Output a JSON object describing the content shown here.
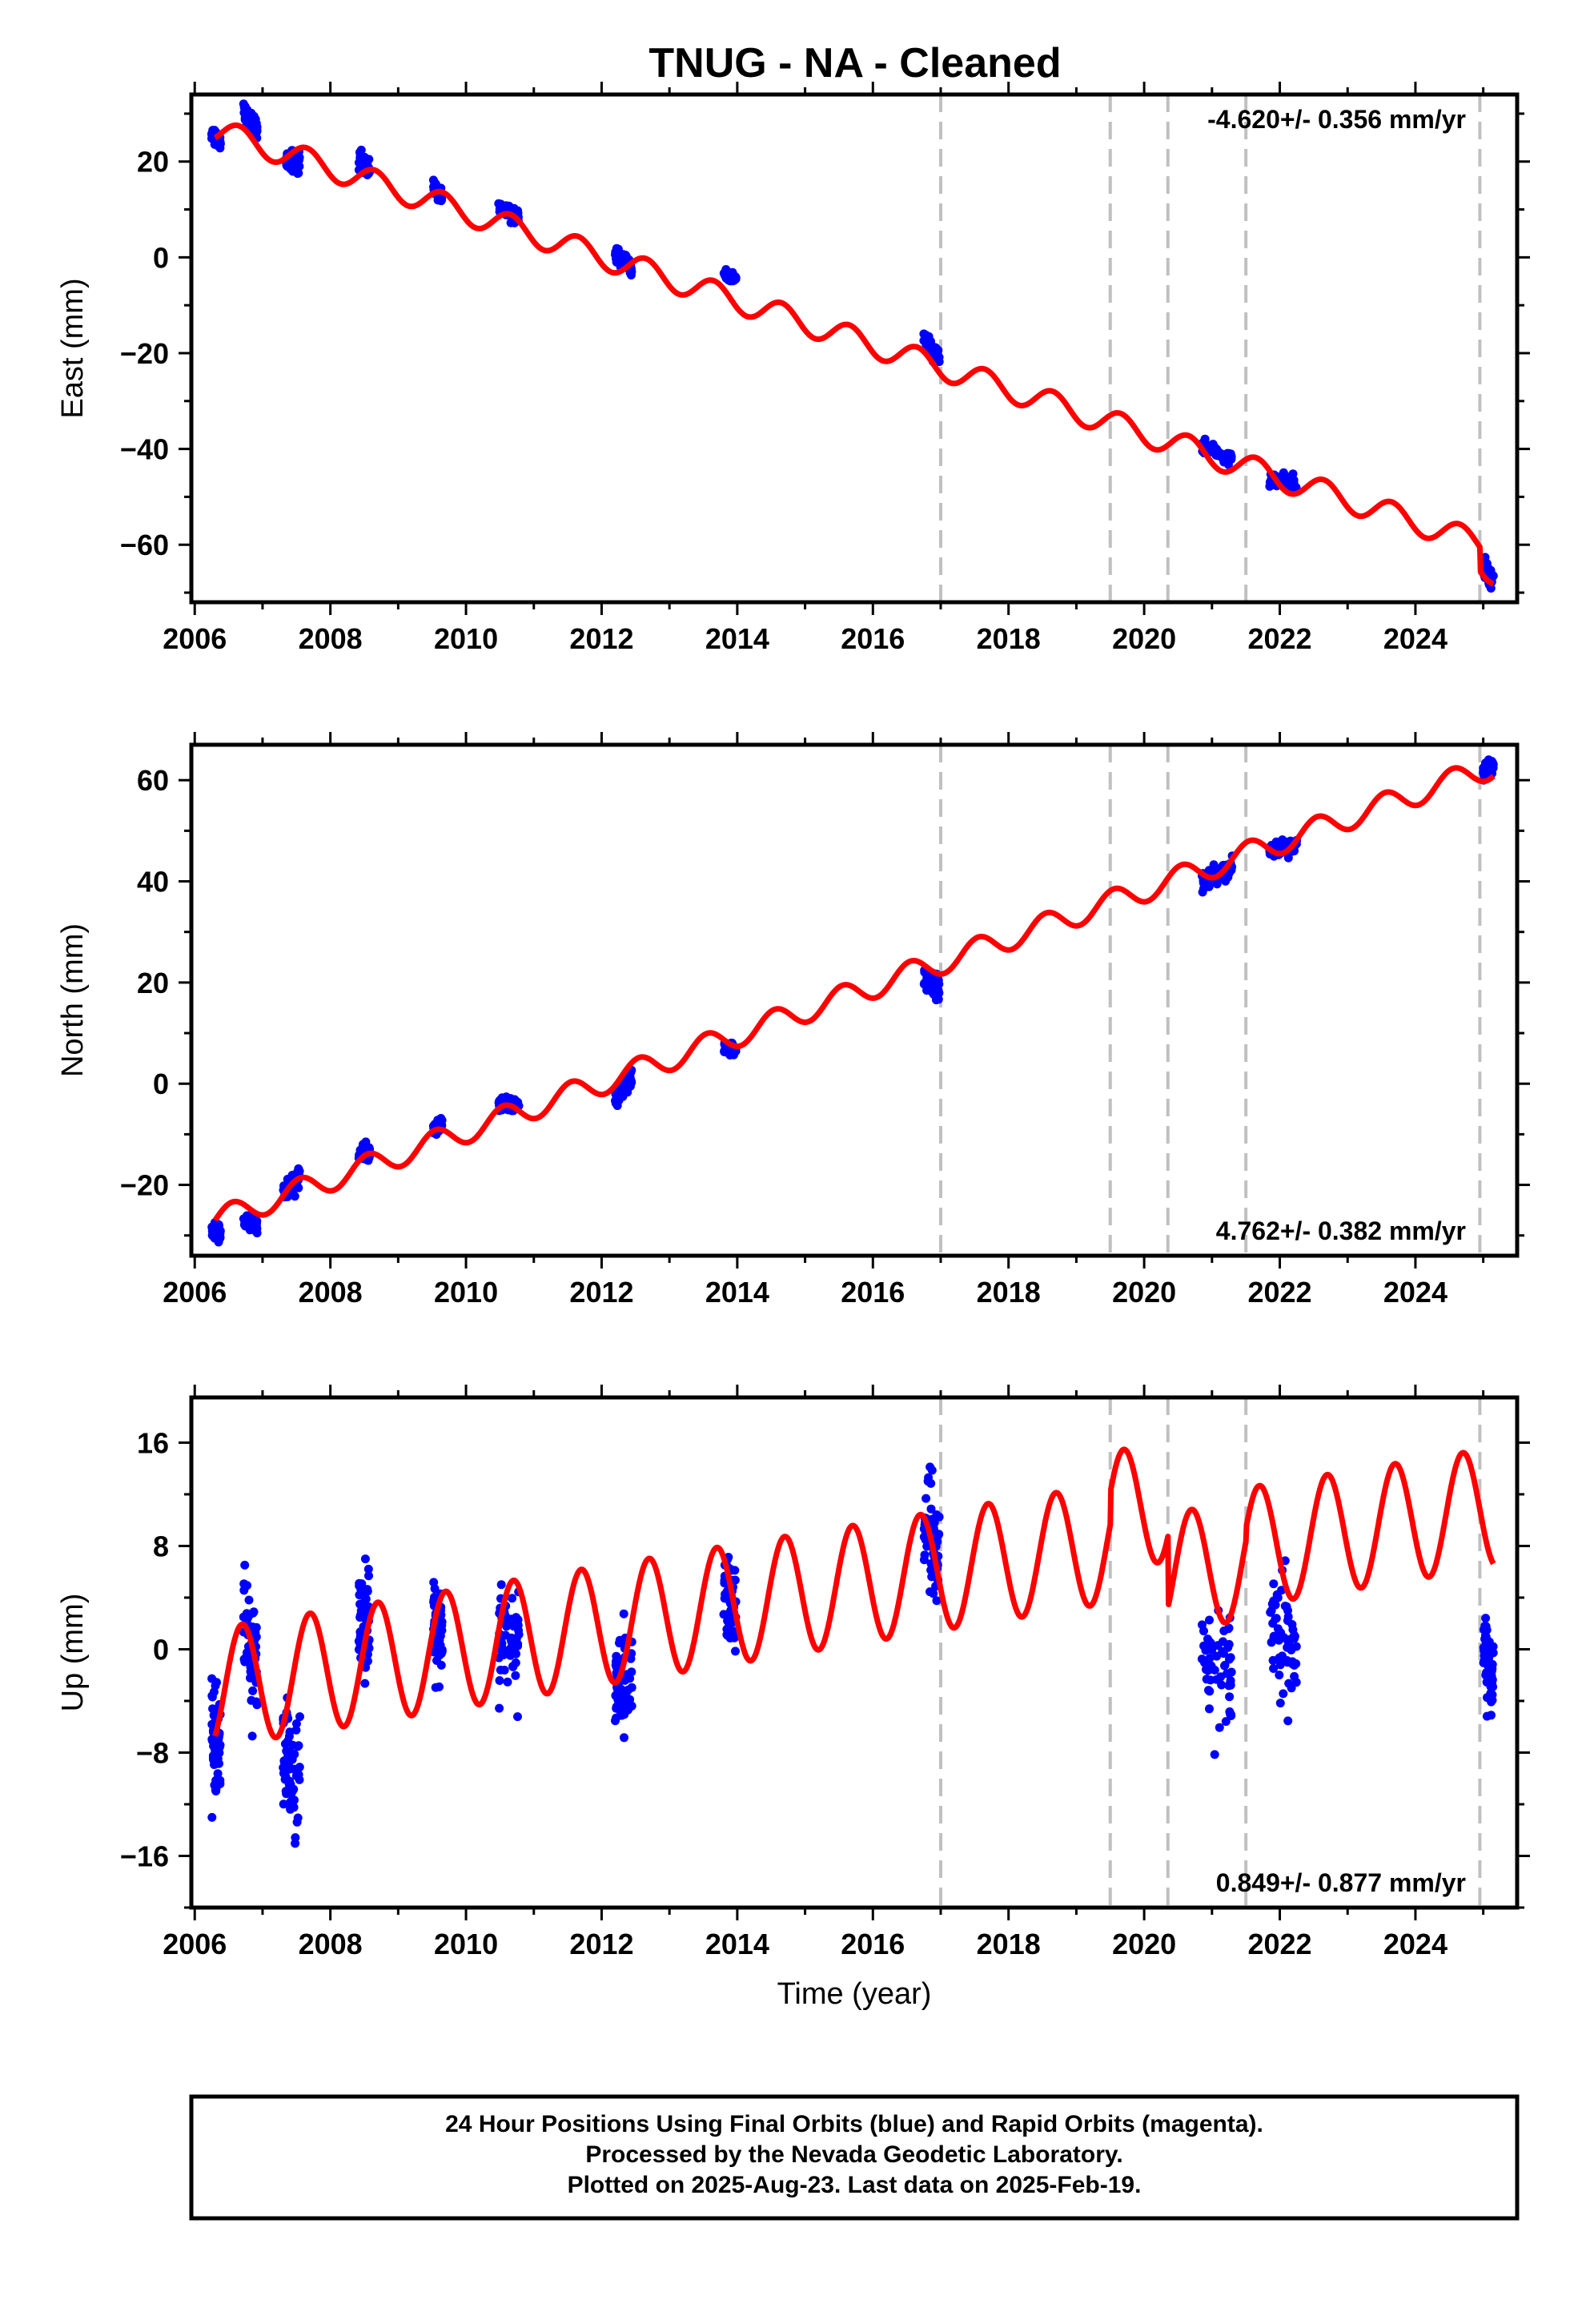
{
  "title": "TNUG  - NA - Cleaned",
  "colors": {
    "data": "#0000ff",
    "model": "#ff0000",
    "breaks": "#c0c0c0",
    "frame": "#000000"
  },
  "footer": {
    "line1": "24 Hour Positions Using Final Orbits (blue) and Rapid Orbits (magenta).",
    "line2": "Processed by the Nevada Geodetic Laboratory.",
    "line3": "Plotted on 2025-Aug-23. Last data on 2025-Feb-19."
  },
  "chart_data": [
    {
      "type": "scatter",
      "name": "east",
      "ylabel": "East (mm)",
      "xlabel": "",
      "rate_label": "-4.620+/- 0.356 mm/yr",
      "rate_position": "top-right",
      "xlim": [
        2005.95,
        2025.5
      ],
      "ylim": [
        -72,
        34
      ],
      "xticks": [
        2006,
        2008,
        2010,
        2012,
        2014,
        2016,
        2018,
        2020,
        2022,
        2024
      ],
      "yticks": [
        20,
        0,
        -20,
        -40,
        -60
      ],
      "breaks": [
        2017.0,
        2019.5,
        2020.35,
        2021.5,
        2024.95
      ],
      "model": {
        "start_year": 2006.3,
        "end_year": 2025.15,
        "intercept": 26.5,
        "rate": -4.62,
        "amplitude": 2.6,
        "phase_peak": 0.65,
        "steps": [
          {
            "year": 2024.95,
            "offset": -5.0
          }
        ]
      },
      "clusters": [
        {
          "x": [
            2006.25,
            2006.38
          ],
          "y": [
            26.0,
            24.0
          ],
          "spread": 1.2
        },
        {
          "x": [
            2006.72,
            2006.92
          ],
          "y": [
            30.0,
            27.0
          ],
          "spread": 1.6
        },
        {
          "x": [
            2007.35,
            2007.55
          ],
          "y": [
            20.0,
            20.0
          ],
          "spread": 1.8
        },
        {
          "x": [
            2008.42,
            2008.58
          ],
          "y": [
            21.0,
            18.0
          ],
          "spread": 1.3
        },
        {
          "x": [
            2009.52,
            2009.65
          ],
          "y": [
            14.5,
            12.5
          ],
          "spread": 1.0
        },
        {
          "x": [
            2010.48,
            2010.78
          ],
          "y": [
            10.5,
            8.5
          ],
          "spread": 1.2
        },
        {
          "x": [
            2012.2,
            2012.45
          ],
          "y": [
            0.5,
            -2.0
          ],
          "spread": 1.2
        },
        {
          "x": [
            2013.8,
            2013.98
          ],
          "y": [
            -3.5,
            -4.5
          ],
          "spread": 0.8
        },
        {
          "x": [
            2016.75,
            2016.98
          ],
          "y": [
            -17.0,
            -21.0
          ],
          "spread": 1.4
        },
        {
          "x": [
            2020.85,
            2021.3
          ],
          "y": [
            -39.5,
            -42.0
          ],
          "spread": 1.0
        },
        {
          "x": [
            2021.85,
            2022.25
          ],
          "y": [
            -46.5,
            -47.0
          ],
          "spread": 1.2
        },
        {
          "x": [
            2025.0,
            2025.15
          ],
          "y": [
            -65.0,
            -67.5
          ],
          "spread": 1.5
        }
      ]
    },
    {
      "type": "scatter",
      "name": "north",
      "ylabel": "North (mm)",
      "xlabel": "",
      "rate_label": "4.762+/- 0.382 mm/yr",
      "rate_position": "bottom-right",
      "xlim": [
        2005.95,
        2025.5
      ],
      "ylim": [
        -34,
        67
      ],
      "xticks": [
        2006,
        2008,
        2010,
        2012,
        2014,
        2016,
        2018,
        2020,
        2022,
        2024
      ],
      "yticks": [
        60,
        40,
        20,
        0,
        -20
      ],
      "breaks": [
        2017.0,
        2019.5,
        2020.35,
        2021.5,
        2024.95
      ],
      "model": {
        "start_year": 2006.3,
        "end_year": 2025.15,
        "intercept": -27.0,
        "rate": 4.762,
        "amplitude": 2.4,
        "phase_peak": 0.55,
        "steps": []
      },
      "clusters": [
        {
          "x": [
            2006.25,
            2006.38
          ],
          "y": [
            -28.5,
            -30.0
          ],
          "spread": 1.3
        },
        {
          "x": [
            2006.72,
            2006.92
          ],
          "y": [
            -27.0,
            -28.0
          ],
          "spread": 1.2
        },
        {
          "x": [
            2007.3,
            2007.55
          ],
          "y": [
            -22.0,
            -18.0
          ],
          "spread": 1.8
        },
        {
          "x": [
            2008.42,
            2008.58
          ],
          "y": [
            -14.0,
            -13.0
          ],
          "spread": 1.3
        },
        {
          "x": [
            2009.52,
            2009.65
          ],
          "y": [
            -9.0,
            -8.0
          ],
          "spread": 1.2
        },
        {
          "x": [
            2010.48,
            2010.78
          ],
          "y": [
            -4.0,
            -4.5
          ],
          "spread": 1.2
        },
        {
          "x": [
            2012.2,
            2012.45
          ],
          "y": [
            -3.0,
            1.5
          ],
          "spread": 1.6
        },
        {
          "x": [
            2013.8,
            2013.98
          ],
          "y": [
            7.0,
            6.5
          ],
          "spread": 1.0
        },
        {
          "x": [
            2016.75,
            2016.98
          ],
          "y": [
            21.0,
            19.0
          ],
          "spread": 1.8
        },
        {
          "x": [
            2020.85,
            2021.3
          ],
          "y": [
            40.0,
            43.0
          ],
          "spread": 1.6
        },
        {
          "x": [
            2021.85,
            2022.25
          ],
          "y": [
            46.0,
            47.0
          ],
          "spread": 1.3
        },
        {
          "x": [
            2025.0,
            2025.15
          ],
          "y": [
            62.0,
            63.0
          ],
          "spread": 1.2
        }
      ]
    },
    {
      "type": "scatter",
      "name": "up",
      "ylabel": "Up (mm)",
      "xlabel": "Time (year)",
      "rate_label": "0.849+/- 0.877 mm/yr",
      "rate_position": "bottom-right",
      "xlim": [
        2005.95,
        2025.5
      ],
      "ylim": [
        -20,
        19.5
      ],
      "xticks": [
        2006,
        2008,
        2010,
        2012,
        2014,
        2016,
        2018,
        2020,
        2022,
        2024
      ],
      "yticks": [
        16,
        8,
        0,
        -8,
        -16
      ],
      "breaks": [
        2017.0,
        2019.5,
        2020.35,
        2021.5,
        2024.95
      ],
      "model": {
        "start_year": 2006.3,
        "end_year": 2025.15,
        "intercept": -3.0,
        "rate": 0.849,
        "amplitude": 4.6,
        "phase_peak": 0.7,
        "steps": [
          {
            "year": 2019.5,
            "offset": 2.5
          },
          {
            "year": 2020.35,
            "offset": -5.5
          },
          {
            "year": 2021.5,
            "offset": 1.0
          }
        ]
      },
      "clusters": [
        {
          "x": [
            2006.25,
            2006.38
          ],
          "y": [
            -6.0,
            -7.0
          ],
          "spread": 3.5
        },
        {
          "x": [
            2006.72,
            2006.92
          ],
          "y": [
            2.0,
            -2.0
          ],
          "spread": 3.5
        },
        {
          "x": [
            2007.3,
            2007.55
          ],
          "y": [
            -8.0,
            -10.0
          ],
          "spread": 4.0
        },
        {
          "x": [
            2008.42,
            2008.58
          ],
          "y": [
            3.0,
            1.0
          ],
          "spread": 3.2
        },
        {
          "x": [
            2009.52,
            2009.65
          ],
          "y": [
            2.0,
            0.0
          ],
          "spread": 3.0
        },
        {
          "x": [
            2010.48,
            2010.78
          ],
          "y": [
            1.0,
            0.0
          ],
          "spread": 3.8
        },
        {
          "x": [
            2012.2,
            2012.45
          ],
          "y": [
            -3.0,
            -2.0
          ],
          "spread": 3.5
        },
        {
          "x": [
            2013.8,
            2013.98
          ],
          "y": [
            4.0,
            3.0
          ],
          "spread": 3.0
        },
        {
          "x": [
            2016.75,
            2016.98
          ],
          "y": [
            10.0,
            7.0
          ],
          "spread": 4.2
        },
        {
          "x": [
            2020.85,
            2021.3
          ],
          "y": [
            -1.0,
            -3.0
          ],
          "spread": 3.5
        },
        {
          "x": [
            2021.85,
            2022.25
          ],
          "y": [
            2.0,
            -2.0
          ],
          "spread": 3.8
        },
        {
          "x": [
            2025.0,
            2025.15
          ],
          "y": [
            0.0,
            -2.0
          ],
          "spread": 3.5
        }
      ]
    }
  ]
}
